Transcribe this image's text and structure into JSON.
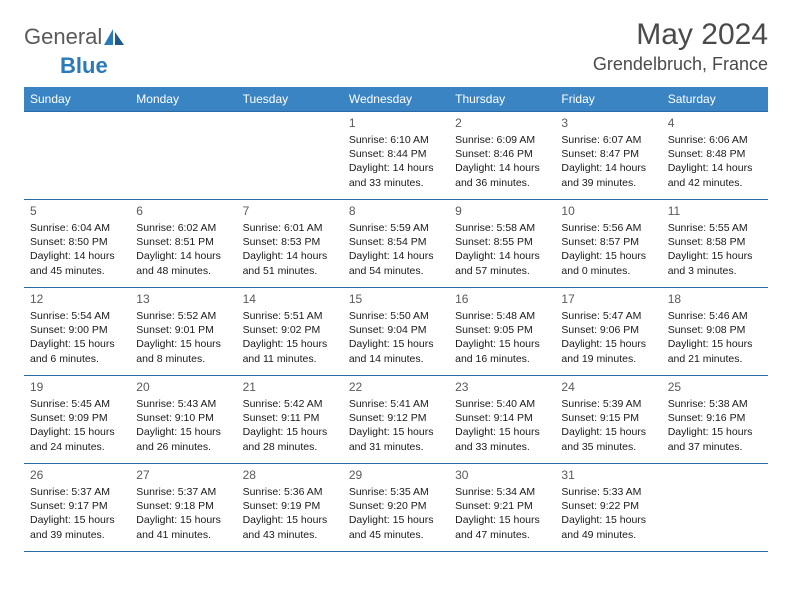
{
  "logo": {
    "text1": "General",
    "text2": "Blue"
  },
  "title": "May 2024",
  "location": "Grendelbruch, France",
  "colors": {
    "header_bg": "#3a84c4",
    "header_text": "#ffffff",
    "border": "#2a6aa8",
    "logo_grey": "#5a5a5a",
    "logo_blue": "#2a7ab8",
    "body_text": "#1a1a1a",
    "daynum": "#5a5a5a"
  },
  "weekdays": [
    "Sunday",
    "Monday",
    "Tuesday",
    "Wednesday",
    "Thursday",
    "Friday",
    "Saturday"
  ],
  "weeks": [
    [
      null,
      null,
      null,
      {
        "d": "1",
        "sr": "6:10 AM",
        "ss": "8:44 PM",
        "dl": "14 hours and 33 minutes."
      },
      {
        "d": "2",
        "sr": "6:09 AM",
        "ss": "8:46 PM",
        "dl": "14 hours and 36 minutes."
      },
      {
        "d": "3",
        "sr": "6:07 AM",
        "ss": "8:47 PM",
        "dl": "14 hours and 39 minutes."
      },
      {
        "d": "4",
        "sr": "6:06 AM",
        "ss": "8:48 PM",
        "dl": "14 hours and 42 minutes."
      }
    ],
    [
      {
        "d": "5",
        "sr": "6:04 AM",
        "ss": "8:50 PM",
        "dl": "14 hours and 45 minutes."
      },
      {
        "d": "6",
        "sr": "6:02 AM",
        "ss": "8:51 PM",
        "dl": "14 hours and 48 minutes."
      },
      {
        "d": "7",
        "sr": "6:01 AM",
        "ss": "8:53 PM",
        "dl": "14 hours and 51 minutes."
      },
      {
        "d": "8",
        "sr": "5:59 AM",
        "ss": "8:54 PM",
        "dl": "14 hours and 54 minutes."
      },
      {
        "d": "9",
        "sr": "5:58 AM",
        "ss": "8:55 PM",
        "dl": "14 hours and 57 minutes."
      },
      {
        "d": "10",
        "sr": "5:56 AM",
        "ss": "8:57 PM",
        "dl": "15 hours and 0 minutes."
      },
      {
        "d": "11",
        "sr": "5:55 AM",
        "ss": "8:58 PM",
        "dl": "15 hours and 3 minutes."
      }
    ],
    [
      {
        "d": "12",
        "sr": "5:54 AM",
        "ss": "9:00 PM",
        "dl": "15 hours and 6 minutes."
      },
      {
        "d": "13",
        "sr": "5:52 AM",
        "ss": "9:01 PM",
        "dl": "15 hours and 8 minutes."
      },
      {
        "d": "14",
        "sr": "5:51 AM",
        "ss": "9:02 PM",
        "dl": "15 hours and 11 minutes."
      },
      {
        "d": "15",
        "sr": "5:50 AM",
        "ss": "9:04 PM",
        "dl": "15 hours and 14 minutes."
      },
      {
        "d": "16",
        "sr": "5:48 AM",
        "ss": "9:05 PM",
        "dl": "15 hours and 16 minutes."
      },
      {
        "d": "17",
        "sr": "5:47 AM",
        "ss": "9:06 PM",
        "dl": "15 hours and 19 minutes."
      },
      {
        "d": "18",
        "sr": "5:46 AM",
        "ss": "9:08 PM",
        "dl": "15 hours and 21 minutes."
      }
    ],
    [
      {
        "d": "19",
        "sr": "5:45 AM",
        "ss": "9:09 PM",
        "dl": "15 hours and 24 minutes."
      },
      {
        "d": "20",
        "sr": "5:43 AM",
        "ss": "9:10 PM",
        "dl": "15 hours and 26 minutes."
      },
      {
        "d": "21",
        "sr": "5:42 AM",
        "ss": "9:11 PM",
        "dl": "15 hours and 28 minutes."
      },
      {
        "d": "22",
        "sr": "5:41 AM",
        "ss": "9:12 PM",
        "dl": "15 hours and 31 minutes."
      },
      {
        "d": "23",
        "sr": "5:40 AM",
        "ss": "9:14 PM",
        "dl": "15 hours and 33 minutes."
      },
      {
        "d": "24",
        "sr": "5:39 AM",
        "ss": "9:15 PM",
        "dl": "15 hours and 35 minutes."
      },
      {
        "d": "25",
        "sr": "5:38 AM",
        "ss": "9:16 PM",
        "dl": "15 hours and 37 minutes."
      }
    ],
    [
      {
        "d": "26",
        "sr": "5:37 AM",
        "ss": "9:17 PM",
        "dl": "15 hours and 39 minutes."
      },
      {
        "d": "27",
        "sr": "5:37 AM",
        "ss": "9:18 PM",
        "dl": "15 hours and 41 minutes."
      },
      {
        "d": "28",
        "sr": "5:36 AM",
        "ss": "9:19 PM",
        "dl": "15 hours and 43 minutes."
      },
      {
        "d": "29",
        "sr": "5:35 AM",
        "ss": "9:20 PM",
        "dl": "15 hours and 45 minutes."
      },
      {
        "d": "30",
        "sr": "5:34 AM",
        "ss": "9:21 PM",
        "dl": "15 hours and 47 minutes."
      },
      {
        "d": "31",
        "sr": "5:33 AM",
        "ss": "9:22 PM",
        "dl": "15 hours and 49 minutes."
      },
      null
    ]
  ],
  "labels": {
    "sunrise": "Sunrise: ",
    "sunset": "Sunset: ",
    "daylight": "Daylight: "
  }
}
